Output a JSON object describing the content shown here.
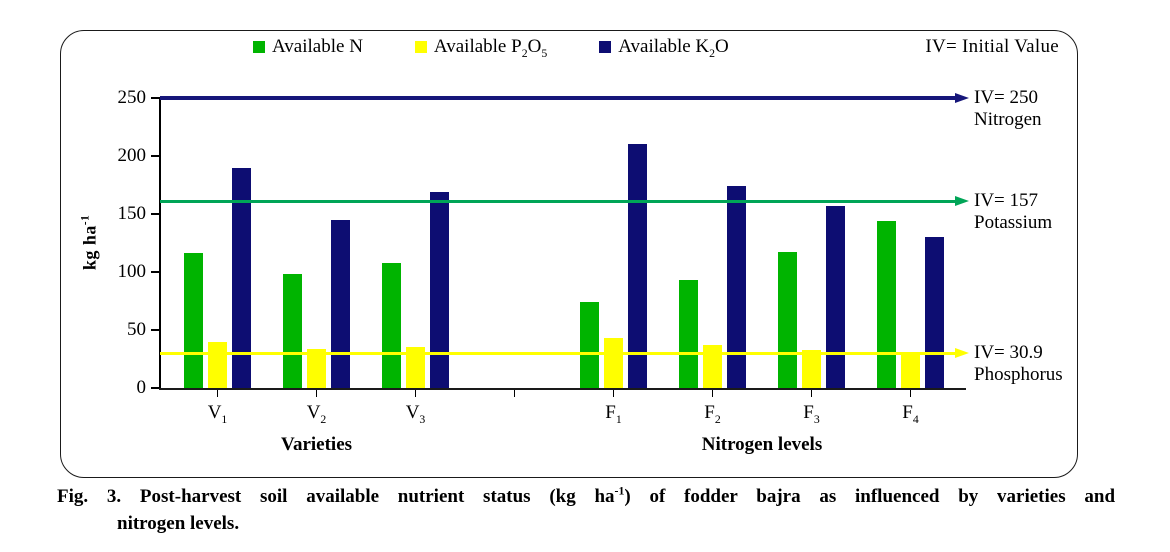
{
  "legend": {
    "items": [
      {
        "label": "Available N",
        "color": "#00b400"
      },
      {
        "label": "Available  P_{2}O_{5}",
        "color": "#ffff00"
      },
      {
        "label": "Available  K_{2}O",
        "color": "#0d0d72"
      }
    ],
    "note": "IV= Initial  Value"
  },
  "chart_data": {
    "type": "bar",
    "title": "",
    "xlabel": "",
    "ylabel": "kg ha^{-1}",
    "ylim": [
      0,
      250
    ],
    "yticks": [
      0,
      50,
      100,
      150,
      200,
      250
    ],
    "grid": false,
    "legend_position": "top",
    "categories": [
      "V_{1}",
      "V_{2}",
      "V_{3}",
      "",
      "F_{1}",
      "F_{2}",
      "F_{3}",
      "F_{4}"
    ],
    "group_labels": [
      {
        "label": "Varieties",
        "from": 0,
        "to": 2
      },
      {
        "label": "Nitrogen levels",
        "from": 4,
        "to": 7
      }
    ],
    "series": [
      {
        "name": "Available N",
        "color": "#00b400",
        "values": [
          116,
          98,
          108,
          null,
          74,
          93,
          117,
          144
        ]
      },
      {
        "name": "Available P_{2}O_{5}",
        "color": "#ffff00",
        "values": [
          40,
          34,
          35,
          null,
          43,
          37,
          33,
          31
        ]
      },
      {
        "name": "Available K_{2}O",
        "color": "#0d0d72",
        "values": [
          190,
          145,
          169,
          null,
          210,
          174,
          157,
          130
        ]
      }
    ],
    "reference_lines": [
      {
        "value": 250,
        "draw_value": 250,
        "color": "#16167a",
        "label_line1": "IV= 250",
        "label_line2": "Nitrogen"
      },
      {
        "value": 157,
        "draw_value": 161,
        "color": "#00a557",
        "label_line1": "IV= 157",
        "label_line2": "Potassium"
      },
      {
        "value": 30.9,
        "draw_value": 30,
        "color": "#ffff00",
        "label_line1": "IV= 30.9",
        "label_line2": "Phosphorus"
      }
    ]
  },
  "caption": {
    "fig": "Fig. 3.",
    "text_line1": "Post-harvest soil available nutrient status (kg ha^{-1}) of fodder bajra as influenced by varieties and",
    "text_line2": "nitrogen levels."
  }
}
